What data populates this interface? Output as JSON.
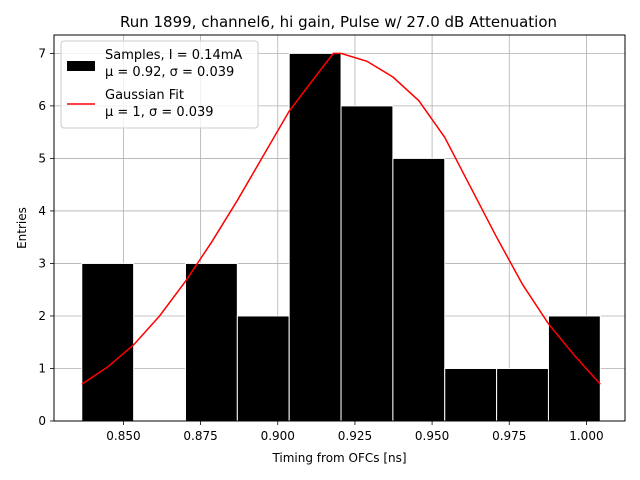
{
  "chart_data": {
    "type": "bar",
    "title": "Run 1899, channel6, hi gain, Pulse w/ 27.0 dB Attenuation",
    "xlabel": "Timing from OFCs [ns]",
    "ylabel": "Entries",
    "xlim": [
      0.8275,
      1.0125
    ],
    "ylim": [
      0,
      7.35
    ],
    "grid": true,
    "legend_position": "top-left",
    "x_ticks": [
      0.85,
      0.875,
      0.9,
      0.925,
      0.95,
      0.975,
      1.0
    ],
    "x_tick_labels": [
      "0.850",
      "0.875",
      "0.900",
      "0.925",
      "0.950",
      "0.975",
      "1.000"
    ],
    "y_ticks": [
      0,
      1,
      2,
      3,
      4,
      5,
      6,
      7
    ],
    "y_tick_labels": [
      "0",
      "1",
      "2",
      "3",
      "4",
      "5",
      "6",
      "7"
    ],
    "histogram": {
      "name": "Samples, I = 0.14mA",
      "stats_label": "μ = 0.92, σ = 0.039",
      "color": "#000000",
      "edge_color": "#ffffff",
      "bin_edges": [
        0.8365,
        0.8533,
        0.8701,
        0.8869,
        0.9037,
        0.9205,
        0.9373,
        0.9541,
        0.9709,
        0.9877,
        1.0045
      ],
      "counts": [
        3,
        0,
        3,
        2,
        7,
        6,
        5,
        1,
        1,
        2
      ]
    },
    "fit": {
      "name": "Gaussian Fit",
      "stats_label": "μ = 1, σ = 0.039",
      "color": "#ff0000",
      "x": [
        0.8365,
        0.8449,
        0.8533,
        0.8617,
        0.8701,
        0.8785,
        0.8869,
        0.8953,
        0.9037,
        0.9121,
        0.918,
        0.9205,
        0.9289,
        0.9373,
        0.9457,
        0.9541,
        0.9625,
        0.9709,
        0.9793,
        0.9877,
        0.9961,
        1.0045
      ],
      "y": [
        0.7,
        1.03,
        1.45,
        2.0,
        2.66,
        3.4,
        4.2,
        5.05,
        5.9,
        6.55,
        7.0,
        7.0,
        6.85,
        6.55,
        6.1,
        5.4,
        4.45,
        3.5,
        2.6,
        1.85,
        1.25,
        0.7
      ]
    }
  }
}
